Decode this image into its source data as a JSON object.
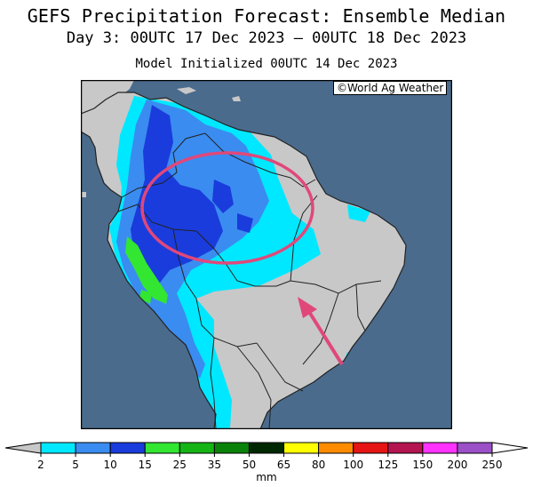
{
  "header": {
    "title": "GEFS Precipitation Forecast: Ensemble Median",
    "period": "Day 3: 00UTC 17 Dec 2023 — 00UTC 18 Dec 2023",
    "initialized": "Model Initialized 00UTC 14 Dec 2023"
  },
  "map": {
    "credit": "©World Ag Weather",
    "colors": {
      "ocean": "#4a6b8c",
      "land": "#c8c8c8",
      "border": "#222222"
    },
    "annotations": [
      {
        "type": "ellipse",
        "color": "#e0487a"
      },
      {
        "type": "arrow",
        "color": "#e0487a"
      }
    ]
  },
  "colorbar": {
    "units": "mm",
    "ticks": [
      "2",
      "5",
      "10",
      "15",
      "25",
      "35",
      "50",
      "65",
      "80",
      "100",
      "125",
      "150",
      "200",
      "250"
    ],
    "colors": [
      "#00e8ff",
      "#3a8cf0",
      "#1a3cdc",
      "#32e632",
      "#14b414",
      "#0a820a",
      "#002800",
      "#ffff00",
      "#ff8c00",
      "#e61414",
      "#b41450",
      "#ff32ff",
      "#9b50c8"
    ],
    "under_color": "#c8c8c8",
    "over_color": "#ffffff"
  }
}
